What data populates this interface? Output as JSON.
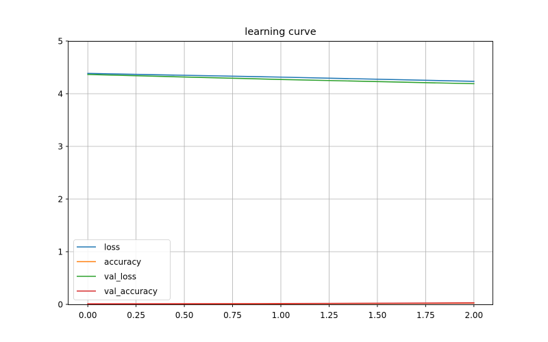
{
  "chart_data": {
    "type": "line",
    "title": "learning curve",
    "xlabel": "",
    "ylabel": "",
    "x": [
      0,
      1,
      2
    ],
    "xlim": [
      -0.1,
      2.1
    ],
    "ylim": [
      0,
      5
    ],
    "x_ticks": [
      "0.00",
      "0.25",
      "0.50",
      "0.75",
      "1.00",
      "1.25",
      "1.50",
      "1.75",
      "2.00"
    ],
    "y_ticks": [
      "0",
      "1",
      "2",
      "3",
      "4",
      "5"
    ],
    "grid": true,
    "legend_position": "lower-left",
    "series": [
      {
        "name": "loss",
        "color": "#1f77b4",
        "values": [
          4.385,
          4.315,
          4.235
        ]
      },
      {
        "name": "accuracy",
        "color": "#ff7f0e",
        "values": [
          0.005,
          0.012,
          0.025
        ]
      },
      {
        "name": "val_loss",
        "color": "#2ca02c",
        "values": [
          4.365,
          4.27,
          4.19
        ]
      },
      {
        "name": "val_accuracy",
        "color": "#d62728",
        "values": [
          0.01,
          0.015,
          0.028
        ]
      }
    ]
  }
}
